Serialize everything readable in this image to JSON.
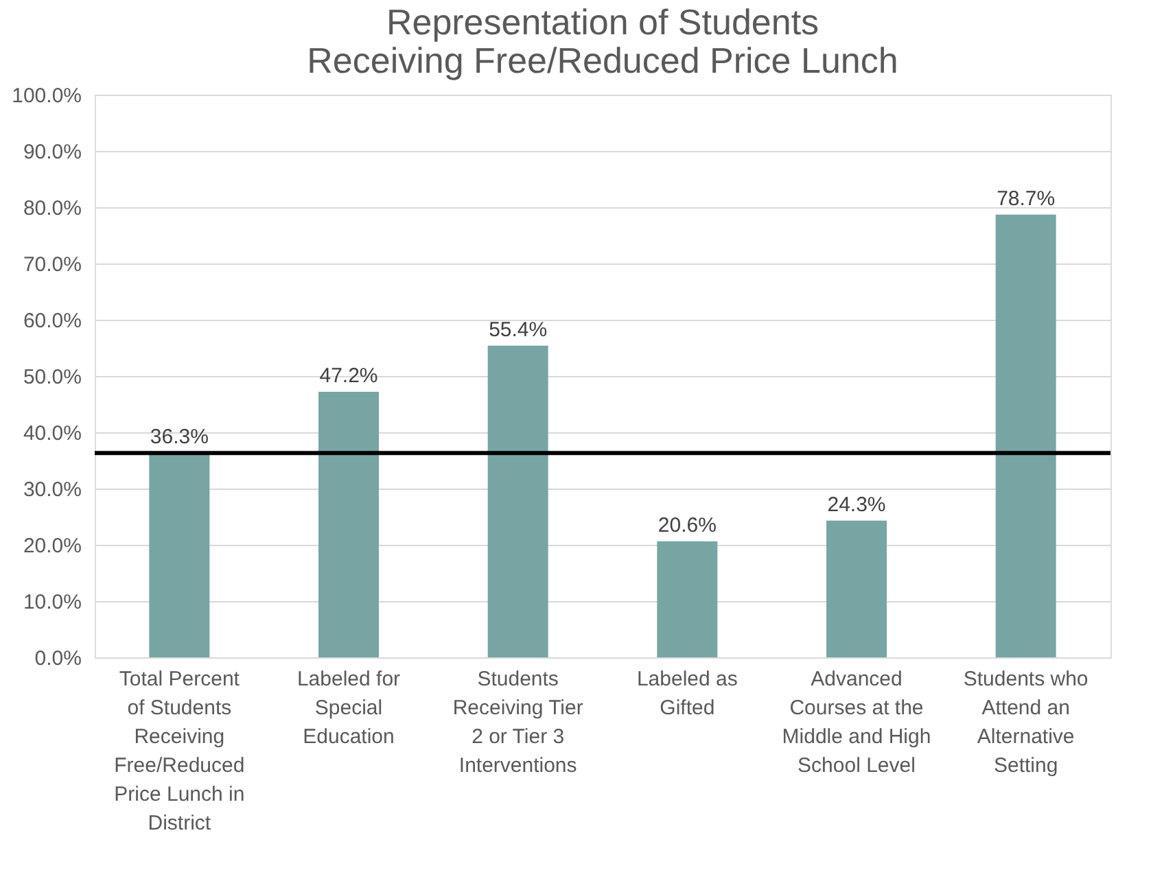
{
  "chart_data": {
    "type": "bar",
    "title": [
      "Representation of Students",
      "Receiving Free/Reduced Price Lunch"
    ],
    "categories": [
      "Total Percent of Students Receiving Free/Reduced Price Lunch in District",
      "Labeled for Special Education",
      "Students Receiving Tier 2 or Tier 3 Interventions",
      "Labeled as Gifted",
      "Advanced Courses at the Middle and High School Level",
      "Students who Attend an Alternative Setting"
    ],
    "values": [
      36.3,
      47.2,
      55.4,
      20.6,
      24.3,
      78.7
    ],
    "value_labels": [
      "36.3%",
      "47.2%",
      "55.4%",
      "20.6%",
      "24.3%",
      "78.7%"
    ],
    "color": "#76a5a4",
    "ylim": [
      0,
      100
    ],
    "yticks": [
      {
        "value": 0,
        "label": "0.0%"
      },
      {
        "value": 10,
        "label": "10.0%"
      },
      {
        "value": 20,
        "label": "20.0%"
      },
      {
        "value": 30,
        "label": "30.0%"
      },
      {
        "value": 40,
        "label": "40.0%"
      },
      {
        "value": 50,
        "label": "50.0%"
      },
      {
        "value": 60,
        "label": "60.0%"
      },
      {
        "value": 70,
        "label": "70.0%"
      },
      {
        "value": 80,
        "label": "80.0%"
      },
      {
        "value": 90,
        "label": "90.0%"
      },
      {
        "value": 100,
        "label": "100.0%"
      }
    ],
    "grid": "y",
    "ref_lines": [
      {
        "axis": "y",
        "value": 36.3,
        "color": "#000000"
      }
    ]
  }
}
